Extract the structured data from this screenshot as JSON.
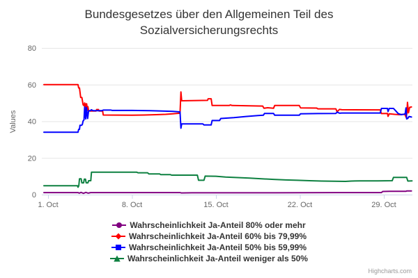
{
  "chart_data": {
    "type": "line",
    "title": "Bundesgesetzes über den Allgemeinen Teil des Sozialversicherungsrechts",
    "ylabel": "Values",
    "legend_position": "bottom",
    "grid": true,
    "grid_color": "#e6e6e6",
    "axis_line_color": "#ccd6eb",
    "label_color": "#666666",
    "x_axis": {
      "tick_days": [
        1,
        8,
        15,
        22,
        29
      ],
      "tick_labels": [
        "1. Oct",
        "8. Oct",
        "15. Oct",
        "22. Oct",
        "29. Oct"
      ],
      "range_days": [
        0.65,
        31.4
      ]
    },
    "y_axis": {
      "ticks": [
        0,
        20,
        40,
        60,
        80
      ],
      "min": 0,
      "max": 80
    },
    "series": [
      {
        "name": "Wahrscheinlichkeit Ja-Anteil 80% oder mehr",
        "color": "#800080",
        "marker": "circle",
        "points": [
          [
            0.65,
            1.1
          ],
          [
            3.5,
            1.1
          ],
          [
            3.6,
            0.8
          ],
          [
            3.75,
            1.2
          ],
          [
            3.95,
            0.7
          ],
          [
            4.15,
            1.2
          ],
          [
            4.35,
            0.8
          ],
          [
            4.55,
            1.1
          ],
          [
            12.0,
            1.1
          ],
          [
            12.1,
            0.9
          ],
          [
            13.0,
            1.0
          ],
          [
            20.0,
            1.0
          ],
          [
            25.0,
            1.1
          ],
          [
            28.8,
            1.1
          ],
          [
            28.9,
            1.7
          ],
          [
            29.5,
            1.8
          ],
          [
            30.85,
            1.8
          ],
          [
            30.9,
            2.0
          ],
          [
            31.3,
            2.0
          ]
        ]
      },
      {
        "name": "Wahrscheinlichkeit Ja-Anteil 60% bis 79,99%",
        "color": "#ff0000",
        "marker": "diamond",
        "points": [
          [
            0.65,
            60
          ],
          [
            3.5,
            60
          ],
          [
            3.55,
            58.2
          ],
          [
            3.62,
            58.2
          ],
          [
            3.66,
            56
          ],
          [
            3.72,
            53
          ],
          [
            3.82,
            53
          ],
          [
            3.86,
            51.5
          ],
          [
            3.92,
            49
          ],
          [
            4.0,
            48.5
          ],
          [
            4.05,
            50
          ],
          [
            4.1,
            44
          ],
          [
            4.16,
            49.5
          ],
          [
            4.22,
            49.5
          ],
          [
            4.27,
            46
          ],
          [
            4.32,
            48
          ],
          [
            4.38,
            45.6
          ],
          [
            5.0,
            45.6
          ],
          [
            5.05,
            46.4
          ],
          [
            5.2,
            46.4
          ],
          [
            5.25,
            45.6
          ],
          [
            5.55,
            45.6
          ],
          [
            5.6,
            43.4
          ],
          [
            8.0,
            43.3
          ],
          [
            9.0,
            43.4
          ],
          [
            10.0,
            43.6
          ],
          [
            10.8,
            43.8
          ],
          [
            11.4,
            44.1
          ],
          [
            12.0,
            44.4
          ],
          [
            12.08,
            56
          ],
          [
            12.14,
            51.2
          ],
          [
            13.0,
            51.3
          ],
          [
            14.3,
            51.4
          ],
          [
            14.35,
            52.3
          ],
          [
            14.6,
            52.3
          ],
          [
            14.68,
            48.6
          ],
          [
            16.1,
            48.6
          ],
          [
            16.2,
            48.9
          ],
          [
            16.35,
            48.6
          ],
          [
            18.9,
            48.3
          ],
          [
            19.0,
            47.1
          ],
          [
            19.3,
            47.4
          ],
          [
            19.8,
            47.1
          ],
          [
            19.9,
            48.6
          ],
          [
            21.95,
            48.6
          ],
          [
            22.05,
            47.3
          ],
          [
            23.4,
            47.2
          ],
          [
            23.5,
            46.8
          ],
          [
            25.0,
            46.8
          ],
          [
            25.1,
            45.2
          ],
          [
            25.3,
            46.5
          ],
          [
            25.5,
            46.3
          ],
          [
            28.7,
            46.2
          ],
          [
            28.8,
            44.2
          ],
          [
            29.3,
            44.3
          ],
          [
            29.35,
            42.7
          ],
          [
            29.45,
            44.1
          ],
          [
            29.9,
            43.8
          ],
          [
            30.3,
            43.6
          ],
          [
            30.6,
            43.8
          ],
          [
            30.78,
            43.6
          ],
          [
            30.85,
            42.2
          ],
          [
            30.92,
            44.2
          ],
          [
            30.97,
            50.3
          ],
          [
            31.05,
            44.6
          ],
          [
            31.15,
            47.6
          ],
          [
            31.3,
            47.8
          ]
        ]
      },
      {
        "name": "Wahrscheinlichkeit Ja-Anteil 50% bis 59,99%",
        "color": "#0000ff",
        "marker": "square",
        "points": [
          [
            0.65,
            34
          ],
          [
            3.5,
            34
          ],
          [
            3.55,
            35.6
          ],
          [
            3.62,
            35.6
          ],
          [
            3.66,
            37.8
          ],
          [
            3.8,
            37.8
          ],
          [
            3.86,
            38.3
          ],
          [
            3.92,
            40.2
          ],
          [
            4.0,
            40.8
          ],
          [
            4.05,
            47.8
          ],
          [
            4.1,
            43.2
          ],
          [
            4.14,
            41.3
          ],
          [
            4.2,
            47.5
          ],
          [
            4.26,
            44
          ],
          [
            4.3,
            41.5
          ],
          [
            4.38,
            45.8
          ],
          [
            4.55,
            45.8
          ],
          [
            4.6,
            46.3
          ],
          [
            4.75,
            45.8
          ],
          [
            5.5,
            45.8
          ],
          [
            5.6,
            46.1
          ],
          [
            6.25,
            46.1
          ],
          [
            6.35,
            45.9
          ],
          [
            8.0,
            45.9
          ],
          [
            9.5,
            45.8
          ],
          [
            10.5,
            45.6
          ],
          [
            11.4,
            45.4
          ],
          [
            12.0,
            45.1
          ],
          [
            12.08,
            36.2
          ],
          [
            12.14,
            38.6
          ],
          [
            13.9,
            38.6
          ],
          [
            14.0,
            38.0
          ],
          [
            14.6,
            38.0
          ],
          [
            14.68,
            40.4
          ],
          [
            15.3,
            40.4
          ],
          [
            15.4,
            41.5
          ],
          [
            16.5,
            42.0
          ],
          [
            17.5,
            42.6
          ],
          [
            18.5,
            43.1
          ],
          [
            18.95,
            43.3
          ],
          [
            19.05,
            44.3
          ],
          [
            19.8,
            44.3
          ],
          [
            19.9,
            43.3
          ],
          [
            21.95,
            43.3
          ],
          [
            22.05,
            44.1
          ],
          [
            23.5,
            44.2
          ],
          [
            25.0,
            44.3
          ],
          [
            25.1,
            45.0
          ],
          [
            25.3,
            44.4
          ],
          [
            25.5,
            44.5
          ],
          [
            28.7,
            44.5
          ],
          [
            28.8,
            47.0
          ],
          [
            29.3,
            47.0
          ],
          [
            29.35,
            45.3
          ],
          [
            29.45,
            47.0
          ],
          [
            29.8,
            47.0
          ],
          [
            30.0,
            45.6
          ],
          [
            30.2,
            44.2
          ],
          [
            30.45,
            43.6
          ],
          [
            30.7,
            43.9
          ],
          [
            30.78,
            44.1
          ],
          [
            30.85,
            47.3
          ],
          [
            30.9,
            41.3
          ],
          [
            31.0,
            41.6
          ],
          [
            31.1,
            42.6
          ],
          [
            31.3,
            42.3
          ]
        ]
      },
      {
        "name": "Wahrscheinlichkeit Ja-Anteil weniger als 50%",
        "color": "#0d8040",
        "marker": "triangle",
        "points": [
          [
            0.65,
            4.8
          ],
          [
            3.45,
            4.8
          ],
          [
            3.5,
            4.0
          ],
          [
            3.56,
            4.8
          ],
          [
            3.62,
            8.6
          ],
          [
            3.76,
            8.6
          ],
          [
            3.82,
            6.4
          ],
          [
            3.96,
            6.4
          ],
          [
            4.02,
            8.4
          ],
          [
            4.12,
            8.4
          ],
          [
            4.18,
            6.4
          ],
          [
            4.32,
            6.4
          ],
          [
            4.38,
            7.6
          ],
          [
            4.56,
            7.6
          ],
          [
            4.62,
            12.2
          ],
          [
            8.4,
            12.2
          ],
          [
            8.5,
            11.9
          ],
          [
            9.3,
            11.9
          ],
          [
            9.4,
            11.3
          ],
          [
            10.3,
            11.3
          ],
          [
            10.4,
            10.9
          ],
          [
            11.2,
            10.9
          ],
          [
            11.3,
            10.6
          ],
          [
            13.45,
            10.6
          ],
          [
            13.55,
            7.8
          ],
          [
            14.0,
            7.8
          ],
          [
            14.1,
            10.1
          ],
          [
            15.0,
            10.0
          ],
          [
            15.8,
            9.6
          ],
          [
            16.8,
            9.3
          ],
          [
            17.8,
            9.0
          ],
          [
            18.8,
            8.6
          ],
          [
            19.8,
            8.3
          ],
          [
            20.8,
            8.0
          ],
          [
            21.8,
            7.8
          ],
          [
            22.8,
            7.6
          ],
          [
            23.8,
            7.4
          ],
          [
            24.8,
            7.3
          ],
          [
            25.8,
            7.2
          ],
          [
            26.3,
            7.4
          ],
          [
            27.0,
            7.5
          ],
          [
            28.5,
            7.5
          ],
          [
            29.7,
            7.6
          ],
          [
            29.8,
            9.4
          ],
          [
            30.9,
            9.4
          ],
          [
            31.0,
            7.4
          ],
          [
            31.35,
            7.5
          ]
        ]
      }
    ]
  },
  "credit": "Highcharts.com"
}
